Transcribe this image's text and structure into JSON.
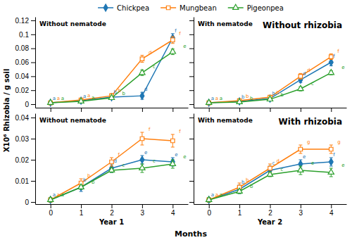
{
  "chart_data": [
    {
      "type": "line",
      "ylabel": "X10⁶ Rhizobia  / g soil",
      "xlabel": "Months",
      "legend": "top",
      "tick_labels": "y",
      "x": [
        0,
        1,
        2,
        3,
        4
      ],
      "xlim": [
        -0.5,
        4.5
      ],
      "xticks": [
        0,
        1,
        2,
        3,
        4
      ],
      "ylim": [
        -0.005,
        0.125
      ],
      "yticks": [
        0,
        0.02,
        0.04,
        0.06,
        0.08,
        0.1,
        0.12
      ],
      "annotations": [
        "Without nematode"
      ],
      "series": [
        {
          "name": "Chickpea",
          "marker": "diamond",
          "values": [
            0.002,
            0.005,
            0.01,
            0.012,
            0.095
          ],
          "errors": [
            0.002,
            0.002,
            0.003,
            0.005,
            0.006
          ],
          "point_labels": [
            "a",
            "a",
            "b",
            "d",
            "f"
          ]
        },
        {
          "name": "Mungbean",
          "marker": "open-square",
          "values": [
            0.002,
            0.006,
            0.012,
            0.065,
            0.092
          ],
          "errors": [
            0.002,
            0.002,
            0.003,
            0.005,
            0.005
          ],
          "point_labels": [
            "a",
            "a",
            "b",
            "d",
            "f"
          ]
        },
        {
          "name": "Pigeonpea",
          "marker": "open-triangle",
          "values": [
            0.002,
            0.004,
            0.009,
            0.045,
            0.075
          ],
          "errors": [
            0.002,
            0.001,
            0.002,
            0.004,
            0.004
          ],
          "point_labels": [
            "a",
            "a",
            "b",
            "c",
            "e"
          ]
        }
      ]
    },
    {
      "type": "line",
      "tick_labels": false,
      "x": [
        0,
        1,
        2,
        3,
        4
      ],
      "xlim": [
        -0.5,
        4.5
      ],
      "xticks": [
        0,
        1,
        2,
        3,
        4
      ],
      "ylim": [
        -0.005,
        0.125
      ],
      "yticks": [
        0,
        0.02,
        0.04,
        0.06,
        0.08,
        0.1,
        0.12
      ],
      "annotations": [
        "With nematode",
        "Without rhizobia"
      ],
      "series": [
        {
          "marker": "diamond",
          "values": [
            0.002,
            0.004,
            0.008,
            0.035,
            0.06
          ],
          "errors": [
            0.002,
            0.002,
            0.003,
            0.004,
            0.005
          ],
          "point_labels": [
            "a",
            "b",
            "b",
            "d",
            "f"
          ]
        },
        {
          "marker": "open-square",
          "values": [
            0.002,
            0.005,
            0.01,
            0.04,
            0.068
          ],
          "errors": [
            0.002,
            0.002,
            0.002,
            0.004,
            0.004
          ],
          "point_labels": [
            "a",
            "b",
            "b",
            "d",
            "f"
          ]
        },
        {
          "marker": "open-triangle",
          "values": [
            0.002,
            0.003,
            0.007,
            0.022,
            0.045
          ],
          "errors": [
            0.002,
            0.001,
            0.002,
            0.003,
            0.003
          ],
          "point_labels": [
            "a",
            "b",
            "b",
            "c",
            "e"
          ]
        }
      ]
    },
    {
      "type": "line",
      "xlabel": "Year 1",
      "x": [
        0,
        1,
        2,
        3,
        4
      ],
      "xlim": [
        -0.5,
        4.5
      ],
      "xticks": [
        0,
        1,
        2,
        3,
        4
      ],
      "ylim": [
        -0.001,
        0.042
      ],
      "yticks": [
        0,
        0.01,
        0.02,
        0.03,
        0.04
      ],
      "annotations": [
        "Without nematode"
      ],
      "series": [
        {
          "marker": "diamond",
          "values": [
            0.001,
            0.007,
            0.016,
            0.02,
            0.019
          ],
          "errors": [
            0.001,
            0.002,
            0.002,
            0.002,
            0.002
          ],
          "point_labels": [
            "a",
            "b",
            "d",
            "e",
            "e"
          ]
        },
        {
          "marker": "open-square",
          "values": [
            0.001,
            0.009,
            0.019,
            0.03,
            0.029
          ],
          "errors": [
            0.001,
            0.002,
            0.002,
            0.003,
            0.003
          ],
          "point_labels": [
            "a",
            "b",
            "f",
            "f",
            "f"
          ]
        },
        {
          "marker": "open-triangle",
          "values": [
            0.001,
            0.007,
            0.015,
            0.016,
            0.018
          ],
          "errors": [
            0.001,
            0.001,
            0.001,
            0.002,
            0.002
          ],
          "point_labels": [
            "a",
            "b",
            "c",
            "c",
            "e"
          ]
        }
      ]
    },
    {
      "type": "line",
      "xlabel": "Year 2",
      "tick_labels": "x",
      "x": [
        0,
        1,
        2,
        3,
        4
      ],
      "xlim": [
        -0.5,
        4.5
      ],
      "xticks": [
        0,
        1,
        2,
        3,
        4
      ],
      "ylim": [
        -0.001,
        0.042
      ],
      "yticks": [
        0,
        0.01,
        0.02,
        0.03,
        0.04
      ],
      "annotations": [
        "With nematode",
        "With rhizobia"
      ],
      "series": [
        {
          "marker": "diamond",
          "values": [
            0.001,
            0.006,
            0.015,
            0.018,
            0.019
          ],
          "errors": [
            0.001,
            0.002,
            0.002,
            0.002,
            0.002
          ],
          "point_labels": [
            "a",
            "b",
            "c",
            "e",
            "f"
          ]
        },
        {
          "marker": "open-square",
          "values": [
            0.001,
            0.007,
            0.016,
            0.025,
            0.025
          ],
          "errors": [
            0.001,
            0.002,
            0.002,
            0.002,
            0.002
          ],
          "point_labels": [
            "a",
            "b",
            "d",
            "g",
            "g"
          ]
        },
        {
          "marker": "open-triangle",
          "values": [
            0.001,
            0.005,
            0.013,
            0.015,
            0.014
          ],
          "errors": [
            0.001,
            0.001,
            0.001,
            0.002,
            0.002
          ],
          "point_labels": [
            "a",
            "b",
            "c",
            "e",
            "e"
          ]
        }
      ]
    }
  ]
}
